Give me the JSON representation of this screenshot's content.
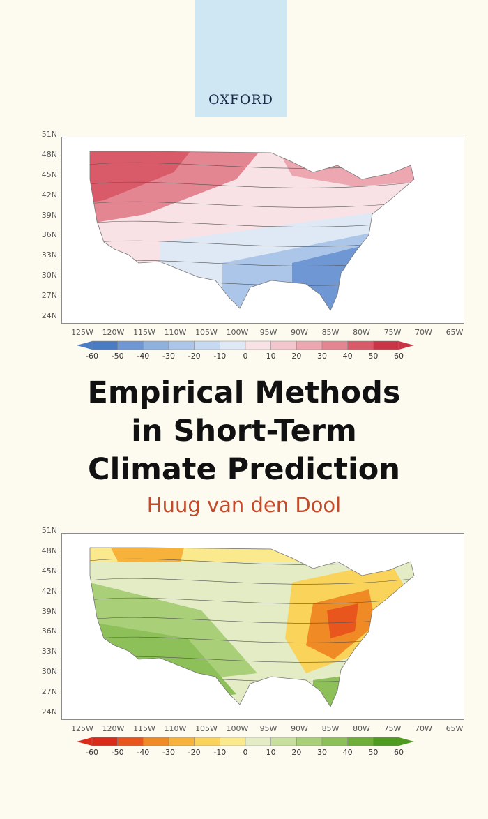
{
  "publisher": "OXFORD",
  "title_lines": [
    "Empirical Methods",
    "in Short-Term",
    "Climate Prediction"
  ],
  "author": "Huug van den Dool",
  "lat_labels": [
    "51N",
    "48N",
    "45N",
    "42N",
    "39N",
    "36N",
    "33N",
    "30N",
    "27N",
    "24N"
  ],
  "lon_labels": [
    "125W",
    "120W",
    "115W",
    "110W",
    "105W",
    "100W",
    "95W",
    "90W",
    "85W",
    "80W",
    "75W",
    "70W",
    "65W"
  ],
  "top_map": {
    "colorbar_ticks": [
      "-60",
      "-50",
      "-40",
      "-30",
      "-20",
      "-10",
      "0",
      "10",
      "20",
      "30",
      "40",
      "50",
      "60"
    ],
    "colors": [
      "#4a7cc4",
      "#6f97d3",
      "#8fb1de",
      "#abc6e8",
      "#c6d9f0",
      "#dfe9f6",
      "#f3f6fb",
      "#f8e2e6",
      "#f3c6cd",
      "#eca7b1",
      "#e48592",
      "#d95a68",
      "#c93546"
    ]
  },
  "bottom_map": {
    "colorbar_ticks": [
      "-60",
      "-50",
      "-40",
      "-30",
      "-20",
      "-10",
      "0",
      "10",
      "20",
      "30",
      "40",
      "50",
      "60"
    ],
    "colors": [
      "#d92a1a",
      "#e8561e",
      "#f08a24",
      "#f6b23a",
      "#f9d35a",
      "#fbe98e",
      "#f8f5dc",
      "#e3ecc5",
      "#c8df9e",
      "#a9cf78",
      "#8ec05a",
      "#6eae39",
      "#4f9a20"
    ]
  }
}
